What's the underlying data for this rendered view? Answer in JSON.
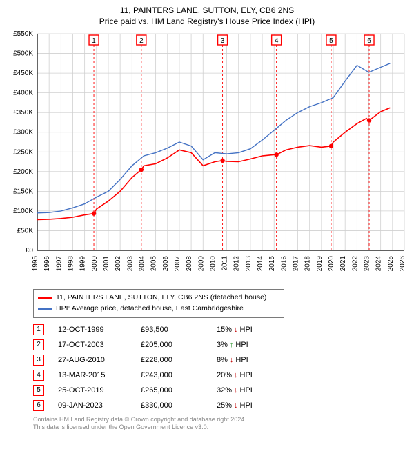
{
  "title_line1": "11, PAINTERS LANE, SUTTON, ELY, CB6 2NS",
  "title_line2": "Price paid vs. HM Land Registry's House Price Index (HPI)",
  "chart": {
    "type": "line",
    "background_color": "#ffffff",
    "grid_color": "#d0d0d0",
    "axis_color": "#000000",
    "marker_border_color": "#ff0000",
    "vertical_marker_line_color": "#ff0000",
    "series": [
      {
        "name": "11, PAINTERS LANE, SUTTON, ELY, CB6 2NS (detached house)",
        "color": "#ff0000",
        "line_width": 1.6
      },
      {
        "name": "HPI: Average price, detached house, East Cambridgeshire",
        "color": "#4472c4",
        "line_width": 1.4
      }
    ],
    "x": {
      "min": 1995,
      "max": 2026,
      "tick_step": 1,
      "labels": [
        "1995",
        "1996",
        "1997",
        "1998",
        "1999",
        "2000",
        "2001",
        "2002",
        "2003",
        "2004",
        "2005",
        "2006",
        "2007",
        "2008",
        "2009",
        "2010",
        "2011",
        "2012",
        "2013",
        "2014",
        "2015",
        "2016",
        "2017",
        "2018",
        "2019",
        "2020",
        "2021",
        "2022",
        "2023",
        "2024",
        "2025",
        "2026"
      ]
    },
    "y": {
      "min": 0,
      "max": 550000,
      "tick_step": 50000,
      "prefix": "£",
      "suffix": "K",
      "labels": [
        "£0",
        "£50K",
        "£100K",
        "£150K",
        "£200K",
        "£250K",
        "£300K",
        "£350K",
        "£400K",
        "£450K",
        "£500K",
        "£550K"
      ]
    },
    "hpi_points": [
      [
        1995,
        95000
      ],
      [
        1996,
        96000
      ],
      [
        1997,
        100000
      ],
      [
        1998,
        108000
      ],
      [
        1999,
        118000
      ],
      [
        2000,
        135000
      ],
      [
        2001,
        150000
      ],
      [
        2002,
        180000
      ],
      [
        2003,
        215000
      ],
      [
        2004,
        240000
      ],
      [
        2005,
        248000
      ],
      [
        2006,
        260000
      ],
      [
        2007,
        275000
      ],
      [
        2008,
        265000
      ],
      [
        2009,
        230000
      ],
      [
        2010,
        248000
      ],
      [
        2011,
        245000
      ],
      [
        2012,
        248000
      ],
      [
        2013,
        258000
      ],
      [
        2014,
        280000
      ],
      [
        2015,
        305000
      ],
      [
        2016,
        330000
      ],
      [
        2017,
        350000
      ],
      [
        2018,
        365000
      ],
      [
        2019,
        375000
      ],
      [
        2020,
        388000
      ],
      [
        2021,
        430000
      ],
      [
        2022,
        470000
      ],
      [
        2023,
        452000
      ],
      [
        2024,
        465000
      ],
      [
        2024.8,
        475000
      ]
    ],
    "red_points": [
      [
        1995,
        78000
      ],
      [
        1996,
        79000
      ],
      [
        1997,
        81000
      ],
      [
        1998,
        84000
      ],
      [
        1999,
        90000
      ],
      [
        1999.78,
        93500
      ],
      [
        2000,
        105000
      ],
      [
        2001,
        125000
      ],
      [
        2002,
        150000
      ],
      [
        2003,
        185000
      ],
      [
        2003.79,
        205000
      ],
      [
        2004,
        215000
      ],
      [
        2005,
        220000
      ],
      [
        2006,
        235000
      ],
      [
        2007,
        255000
      ],
      [
        2008,
        248000
      ],
      [
        2009,
        215000
      ],
      [
        2010,
        225000
      ],
      [
        2010.65,
        228000
      ],
      [
        2011,
        226000
      ],
      [
        2012,
        225000
      ],
      [
        2013,
        232000
      ],
      [
        2014,
        240000
      ],
      [
        2015,
        243000
      ],
      [
        2015.2,
        243000
      ],
      [
        2016,
        255000
      ],
      [
        2017,
        262000
      ],
      [
        2018,
        266000
      ],
      [
        2019,
        262000
      ],
      [
        2019.82,
        265000
      ],
      [
        2020,
        275000
      ],
      [
        2021,
        300000
      ],
      [
        2022,
        322000
      ],
      [
        2022.8,
        335000
      ],
      [
        2023,
        330000
      ],
      [
        2023.03,
        330000
      ],
      [
        2024,
        352000
      ],
      [
        2024.8,
        362000
      ]
    ],
    "sale_markers": [
      {
        "n": "1",
        "x": 1999.78,
        "y": 93500
      },
      {
        "n": "2",
        "x": 2003.79,
        "y": 205000
      },
      {
        "n": "3",
        "x": 2010.65,
        "y": 228000
      },
      {
        "n": "4",
        "x": 2015.2,
        "y": 243000
      },
      {
        "n": "5",
        "x": 2019.82,
        "y": 265000
      },
      {
        "n": "6",
        "x": 2023.03,
        "y": 330000
      }
    ]
  },
  "legend": {
    "series1_label": "11, PAINTERS LANE, SUTTON, ELY, CB6 2NS (detached house)",
    "series2_label": "HPI: Average price, detached house, East Cambridgeshire"
  },
  "sales": [
    {
      "n": "1",
      "date": "12-OCT-1999",
      "price": "£93,500",
      "pct": "15%",
      "dir": "down",
      "vs": "HPI"
    },
    {
      "n": "2",
      "date": "17-OCT-2003",
      "price": "£205,000",
      "pct": "3%",
      "dir": "up",
      "vs": "HPI"
    },
    {
      "n": "3",
      "date": "27-AUG-2010",
      "price": "£228,000",
      "pct": "8%",
      "dir": "down",
      "vs": "HPI"
    },
    {
      "n": "4",
      "date": "13-MAR-2015",
      "price": "£243,000",
      "pct": "20%",
      "dir": "down",
      "vs": "HPI"
    },
    {
      "n": "5",
      "date": "25-OCT-2019",
      "price": "£265,000",
      "pct": "32%",
      "dir": "down",
      "vs": "HPI"
    },
    {
      "n": "6",
      "date": "09-JAN-2023",
      "price": "£330,000",
      "pct": "25%",
      "dir": "down",
      "vs": "HPI"
    }
  ],
  "footer_line1": "Contains HM Land Registry data © Crown copyright and database right 2024.",
  "footer_line2": "This data is licensed under the Open Government Licence v3.0."
}
